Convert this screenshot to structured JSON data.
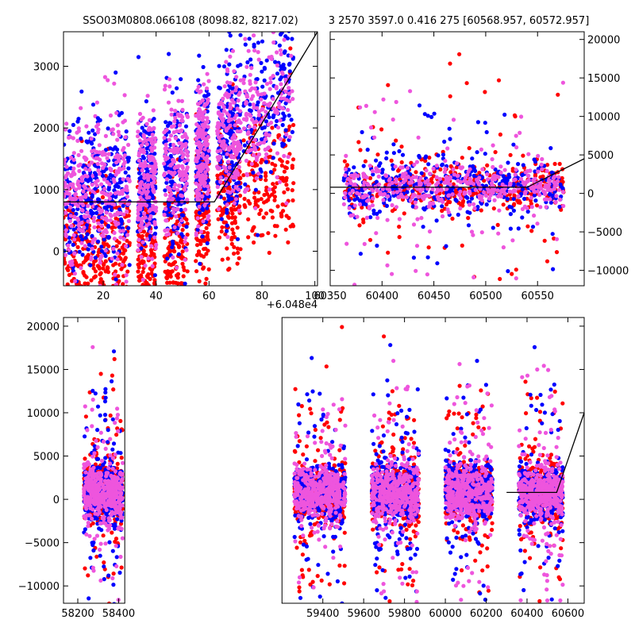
{
  "figure": {
    "title_left": "SSO03M0808.066108 (8098.82, 8217.02)",
    "title_right": "3 2570 3597.0 0.416 275 [60568.957, 60572.957]"
  },
  "colors": {
    "series_red": "#ff0000",
    "series_blue": "#0000ff",
    "series_pink": "#ee55dd",
    "model_line": "#000000",
    "frame": "#000000"
  },
  "chart_data": [
    {
      "id": "top-left",
      "type": "scatter",
      "xlim": [
        5,
        101
      ],
      "ylim": [
        -560,
        3560
      ],
      "x_offset_label": "+6.048e4",
      "x_ticks": [
        20,
        40,
        60,
        80,
        100
      ],
      "x_tick_labels": [
        "20",
        "40",
        "60",
        "80",
        "100"
      ],
      "y_ticks": [
        0,
        1000,
        2000,
        3000
      ],
      "y_tick_labels": [
        "0",
        "1000",
        "2000",
        "3000"
      ],
      "y_axis_side": "left",
      "x_clusters": [
        [
          5,
          17
        ],
        [
          17,
          30
        ],
        [
          33,
          40
        ],
        [
          43,
          52
        ],
        [
          55,
          60
        ],
        [
          63,
          72
        ],
        [
          73,
          92
        ]
      ],
      "model_line": [
        [
          5,
          800
        ],
        [
          62,
          800
        ],
        [
          101,
          3560
        ]
      ]
    },
    {
      "id": "top-right",
      "type": "scatter",
      "xlim": [
        60350,
        60595
      ],
      "ylim": [
        -12000,
        21000
      ],
      "x_ticks": [
        60350,
        60400,
        60450,
        60500,
        60550
      ],
      "x_tick_labels": [
        "60350",
        "60400",
        "60450",
        "60500",
        "60550"
      ],
      "y_ticks": [
        -10000,
        -5000,
        0,
        5000,
        10000,
        15000,
        20000
      ],
      "y_tick_labels": [
        "−10000",
        "−5000",
        "0",
        "5000",
        "10000",
        "15000",
        "20000"
      ],
      "y_axis_side": "right",
      "x_clusters": [
        [
          60363,
          60575
        ]
      ],
      "model_line": [
        [
          60350,
          800
        ],
        [
          60540,
          800
        ],
        [
          60595,
          4500
        ]
      ]
    },
    {
      "id": "bottom",
      "type": "scatter",
      "xlim": [
        58130,
        60680
      ],
      "ylim": [
        -12000,
        21000
      ],
      "x_ticks": [
        58200,
        58400,
        59400,
        59600,
        59800,
        60000,
        60200,
        60400,
        60600
      ],
      "x_tick_labels": [
        "58200",
        "58400",
        "59400",
        "59600",
        "59800",
        "60000",
        "60200",
        "60400",
        "60600"
      ],
      "x_break": [
        58430,
        59200
      ],
      "y_ticks": [
        -10000,
        -5000,
        0,
        5000,
        10000,
        15000,
        20000
      ],
      "y_tick_labels": [
        "−10000",
        "−5000",
        "0",
        "5000",
        "10000",
        "15000",
        "20000"
      ],
      "y_axis_side": "left",
      "x_clusters": [
        [
          58230,
          58420
        ],
        [
          59260,
          59510
        ],
        [
          59640,
          59870
        ],
        [
          60000,
          60230
        ],
        [
          60360,
          60575
        ]
      ],
      "model_line": [
        [
          60300,
          800
        ],
        [
          60545,
          800
        ],
        [
          60680,
          10000
        ]
      ]
    }
  ]
}
